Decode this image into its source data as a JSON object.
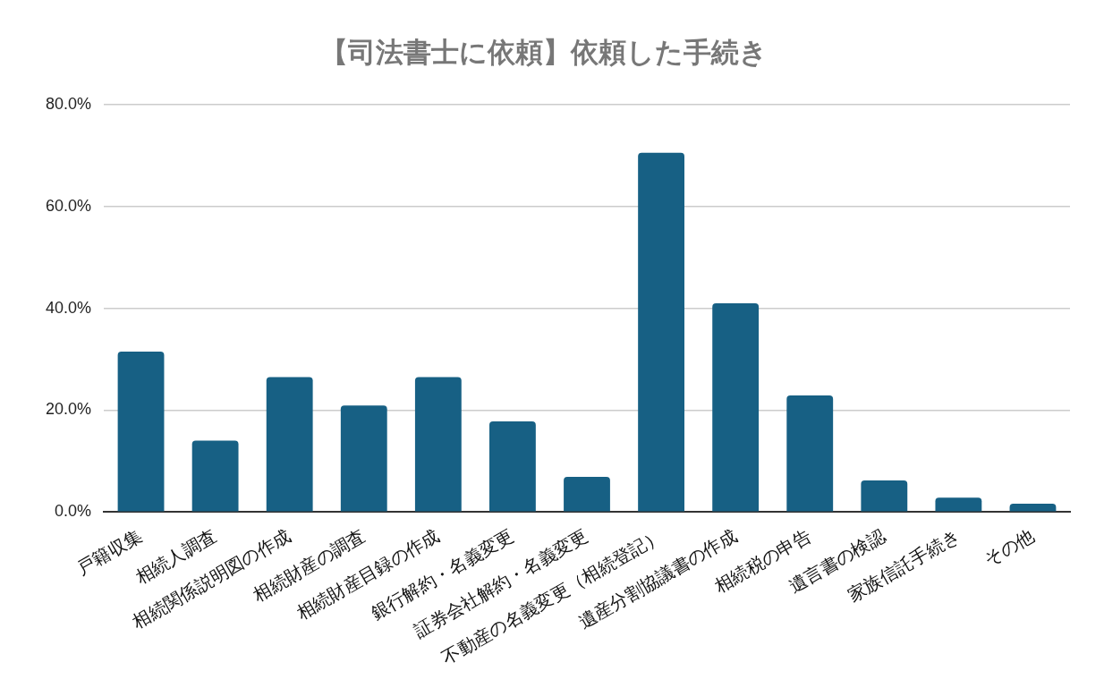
{
  "chart_data": {
    "type": "bar",
    "title": "【司法書士に依頼】依頼した手続き",
    "categories": [
      "戸籍収集",
      "相続人調査",
      "相続関係説明図の作成",
      "相続財産の調査",
      "相続財産目録の作成",
      "銀行解約・名義変更",
      "証券会社解約・名義変更",
      "不動産の名義変更（相続登記）",
      "遺産分割協議書の作成",
      "相続税の申告",
      "遺言書の検認",
      "家族信託手続き",
      "その他"
    ],
    "values": [
      31.5,
      14.0,
      26.5,
      20.9,
      26.5,
      17.8,
      6.9,
      70.6,
      41.0,
      22.9,
      6.2,
      2.8,
      1.6
    ],
    "color": "#176084",
    "ylim": [
      0,
      80
    ],
    "yticks": [
      {
        "value": 0,
        "label": "0.0%"
      },
      {
        "value": 20,
        "label": "20.0%"
      },
      {
        "value": 40,
        "label": "40.0%"
      },
      {
        "value": 60,
        "label": "60.0%"
      },
      {
        "value": 80,
        "label": "80.0%"
      }
    ],
    "grid": "y"
  }
}
